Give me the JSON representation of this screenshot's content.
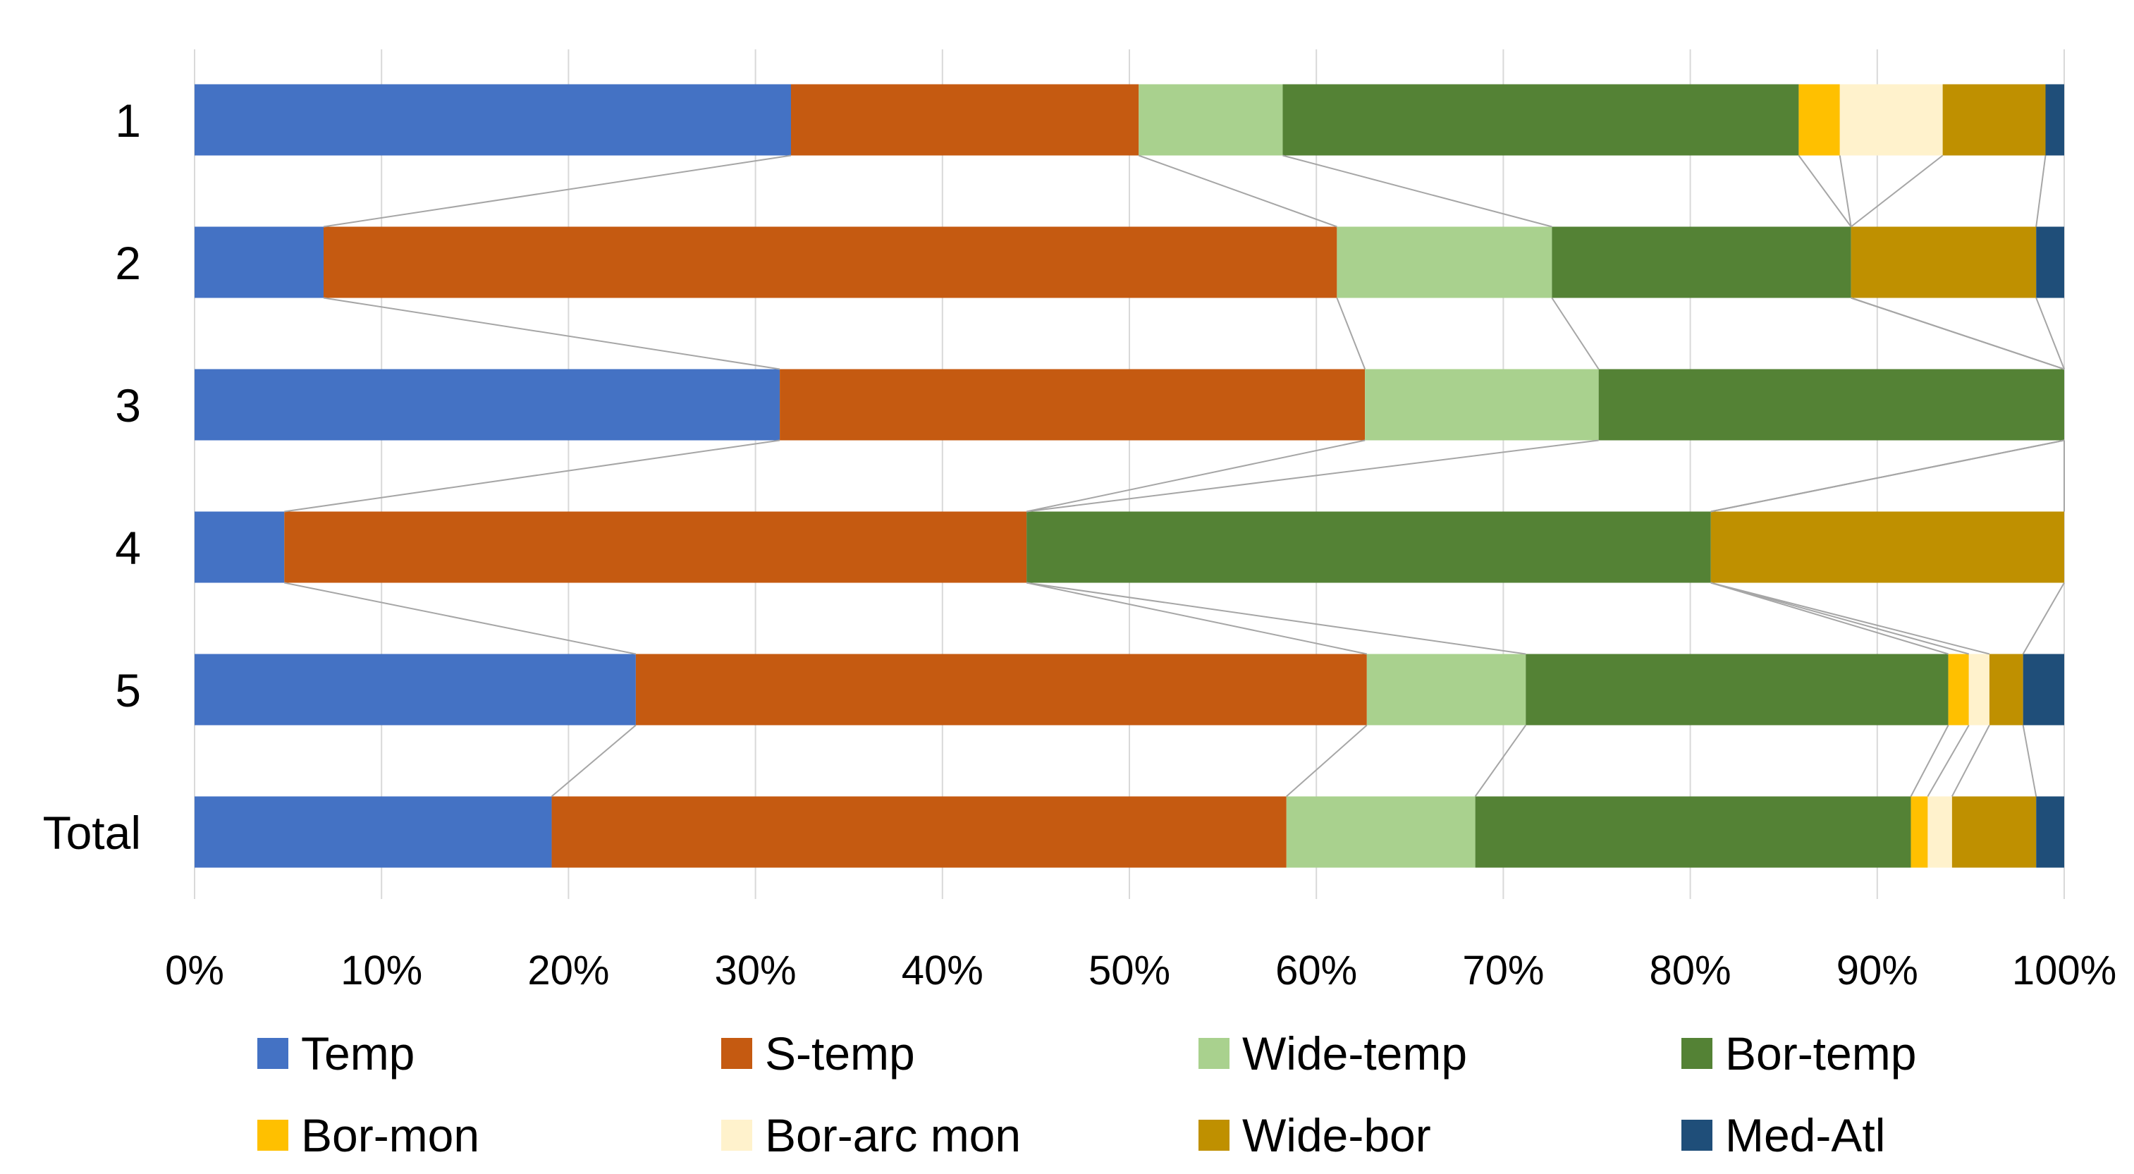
{
  "chart_data": {
    "type": "bar",
    "orientation": "horizontal",
    "stacked": "percent",
    "title": "",
    "xlabel": "",
    "ylabel": "",
    "xlim": [
      0,
      100
    ],
    "x_ticks": [
      "0%",
      "10%",
      "20%",
      "30%",
      "40%",
      "50%",
      "60%",
      "70%",
      "80%",
      "90%",
      "100%"
    ],
    "grid": "vertical",
    "series_lines": true,
    "legend_position": "bottom",
    "categories": [
      "1",
      "2",
      "3",
      "4",
      "5",
      "Total"
    ],
    "series": [
      {
        "name": "Temp",
        "color": "#4472C4",
        "values": [
          31.9,
          6.9,
          31.3,
          4.8,
          23.6,
          19.1
        ]
      },
      {
        "name": "S-temp",
        "color": "#C55A11",
        "values": [
          18.6,
          54.2,
          31.3,
          39.7,
          39.1,
          39.3
        ]
      },
      {
        "name": "Wide-temp",
        "color": "#A9D18E",
        "values": [
          7.7,
          11.5,
          12.5,
          0.0,
          8.5,
          10.1
        ]
      },
      {
        "name": "Bor-temp",
        "color": "#548235",
        "values": [
          27.6,
          16.0,
          24.9,
          36.6,
          22.6,
          23.3
        ]
      },
      {
        "name": "Bor-mon",
        "color": "#FFC000",
        "values": [
          2.2,
          0.0,
          0.0,
          0.0,
          1.1,
          0.9
        ]
      },
      {
        "name": "Bor-arc mon",
        "color": "#FFF2CC",
        "values": [
          5.5,
          0.0,
          0.0,
          0.0,
          1.1,
          1.3
        ]
      },
      {
        "name": "Wide-bor",
        "color": "#BF9000",
        "values": [
          5.5,
          9.9,
          0.0,
          18.9,
          1.8,
          4.5
        ]
      },
      {
        "name": "Med-Atl",
        "color": "#1F4E79",
        "values": [
          1.0,
          1.5,
          0.0,
          0.0,
          2.2,
          1.5
        ]
      }
    ]
  }
}
